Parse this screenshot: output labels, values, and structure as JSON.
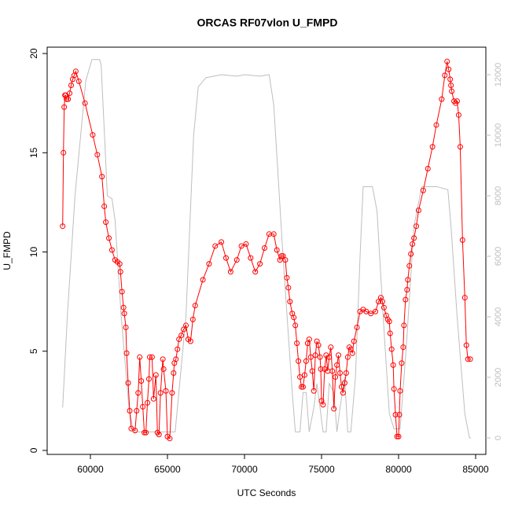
{
  "chart_data": {
    "type": "line",
    "title": "ORCAS RF07vlon U_FMPD",
    "xlabel": "UTC Seconds",
    "ylabel": "U_FMPD",
    "xlim": [
      57194,
      85663
    ],
    "xticks": [
      60000,
      65000,
      70000,
      75000,
      80000,
      85000
    ],
    "ylim": [
      -0.2,
      20.32
    ],
    "yticks": [
      0,
      5,
      10,
      15,
      20
    ],
    "y2lim": [
      -545,
      12909
    ],
    "y2ticks": [
      0,
      2000,
      4000,
      6000,
      8000,
      10000,
      12000
    ],
    "y2color": "#bebebe",
    "series": [
      {
        "color": "#ff0000",
        "markers": true,
        "x": [
          58200,
          58250,
          58300,
          58350,
          58400,
          58450,
          58550,
          58650,
          58750,
          58850,
          58950,
          59050,
          59250,
          59650,
          60150,
          60450,
          60750,
          60900,
          61000,
          61200,
          61400,
          61600,
          61750,
          61900,
          61950,
          62050,
          62150,
          62200,
          62300,
          62350,
          62450,
          62550,
          62650,
          62900,
          63000,
          63100,
          63200,
          63300,
          63400,
          63500,
          63600,
          63700,
          63800,
          63850,
          64000,
          64100,
          64250,
          64350,
          64450,
          64550,
          64700,
          64750,
          64900,
          65000,
          65150,
          65300,
          65400,
          65450,
          65550,
          65650,
          65750,
          65900,
          66050,
          66200,
          66350,
          66500,
          66650,
          66800,
          67300,
          67700,
          68100,
          68500,
          68800,
          69100,
          69500,
          69800,
          70100,
          70400,
          70700,
          71000,
          71300,
          71600,
          71900,
          72100,
          72300,
          72400,
          72500,
          72650,
          72750,
          72850,
          72950,
          73100,
          73200,
          73300,
          73400,
          73500,
          73600,
          73700,
          73800,
          73900,
          74000,
          74100,
          74200,
          74300,
          74400,
          74500,
          74600,
          74700,
          74800,
          74900,
          74950,
          75000,
          75100,
          75200,
          75300,
          75400,
          75500,
          75600,
          75700,
          75800,
          75900,
          76000,
          76100,
          76200,
          76300,
          76400,
          76500,
          76600,
          76700,
          76800,
          76900,
          77000,
          77100,
          77300,
          77500,
          77700,
          77900,
          78200,
          78500,
          78700,
          78850,
          78950,
          79050,
          79200,
          79300,
          79400,
          79450,
          79550,
          79650,
          79700,
          79800,
          79900,
          80000,
          80050,
          80100,
          80200,
          80300,
          80350,
          80450,
          80550,
          80600,
          80700,
          80800,
          80900,
          81000,
          81150,
          81300,
          81600,
          81900,
          82200,
          82450,
          82800,
          83000,
          83150,
          83250,
          83350,
          83400,
          83450,
          83600,
          83700,
          83800,
          83900,
          84000,
          84150,
          84300,
          84400,
          84500,
          84650
        ],
        "values": [
          11.3,
          15.0,
          17.3,
          17.9,
          17.9,
          17.7,
          17.7,
          18.0,
          18.4,
          18.7,
          18.9,
          19.1,
          18.6,
          17.5,
          15.9,
          14.9,
          13.8,
          12.3,
          11.5,
          10.7,
          10.1,
          9.6,
          9.5,
          9.4,
          9.0,
          8.0,
          7.2,
          6.9,
          6.2,
          4.9,
          3.4,
          2.0,
          1.1,
          1.0,
          2.0,
          2.9,
          4.7,
          3.5,
          2.2,
          0.9,
          0.9,
          2.4,
          3.6,
          4.7,
          4.7,
          2.6,
          3.8,
          0.9,
          0.8,
          2.9,
          4.6,
          4.1,
          3.0,
          0.7,
          0.6,
          2.9,
          3.9,
          4.4,
          4.6,
          5.1,
          5.6,
          5.8,
          6.1,
          6.3,
          5.6,
          5.5,
          6.6,
          7.3,
          8.6,
          9.4,
          10.3,
          10.5,
          9.7,
          9.0,
          9.6,
          10.3,
          10.4,
          9.7,
          9.0,
          9.4,
          10.2,
          10.9,
          10.9,
          10.1,
          9.6,
          9.8,
          9.8,
          9.6,
          8.7,
          8.2,
          7.5,
          6.9,
          6.7,
          6.3,
          5.4,
          4.5,
          3.7,
          3.2,
          3.2,
          3.8,
          4.5,
          5.4,
          5.6,
          4.7,
          4.0,
          3.0,
          4.8,
          5.5,
          5.3,
          4.7,
          4.1,
          2.5,
          2.3,
          4.1,
          4.8,
          4.0,
          4.7,
          5.2,
          4.0,
          2.1,
          3.7,
          4.3,
          4.8,
          3.9,
          3.2,
          2.9,
          3.4,
          3.9,
          4.7,
          5.2,
          5.1,
          4.9,
          5.5,
          6.2,
          7.0,
          7.1,
          7.0,
          6.9,
          7.0,
          7.5,
          7.7,
          7.5,
          7.2,
          6.8,
          6.6,
          6.5,
          5.9,
          5.1,
          4.3,
          3.1,
          1.8,
          0.7,
          0.7,
          1.8,
          3.0,
          4.4,
          5.2,
          6.3,
          7.6,
          8.1,
          8.6,
          9.3,
          9.9,
          10.4,
          10.7,
          11.3,
          12.1,
          13.1,
          14.2,
          15.3,
          16.4,
          17.7,
          18.9,
          19.6,
          19.2,
          18.7,
          18.4,
          18.1,
          17.6,
          17.5,
          17.6,
          16.9,
          15.3,
          10.6,
          7.7,
          5.3,
          4.6,
          4.6
        ]
      },
      {
        "color": "#bebebe",
        "axis": "y2",
        "markers": false,
        "x": [
          58200,
          58500,
          59000,
          59700,
          60100,
          60600,
          60700,
          61100,
          61400,
          61600,
          62000,
          62500,
          62800,
          65500,
          66200,
          66700,
          67000,
          67500,
          68500,
          69500,
          70000,
          71000,
          71600,
          71900,
          72500,
          73100,
          73300,
          73600,
          73800,
          74000,
          74200,
          74500,
          74700,
          74900,
          75100,
          75300,
          75500,
          75800,
          76000,
          76200,
          76500,
          76700,
          76900,
          77200,
          77500,
          77700,
          78300,
          78600,
          79000,
          79400,
          79700,
          80100,
          80500,
          81000,
          81500,
          82500,
          83200,
          83400,
          83800,
          84300,
          84600,
          84700
        ],
        "values": [
          1000,
          4000,
          8000,
          11800,
          12500,
          12500,
          12300,
          8000,
          7900,
          7200,
          4000,
          1000,
          200,
          200,
          4000,
          10000,
          11600,
          11900,
          12000,
          11950,
          12000,
          11950,
          12000,
          11000,
          6000,
          1500,
          200,
          200,
          1500,
          1500,
          200,
          1000,
          1800,
          1000,
          200,
          200,
          1800,
          1500,
          200,
          1000,
          2000,
          200,
          200,
          2000,
          6000,
          8300,
          8300,
          7500,
          4000,
          800,
          300,
          300,
          3000,
          7000,
          8300,
          8300,
          8200,
          7000,
          4000,
          800,
          0,
          0
        ]
      }
    ]
  }
}
